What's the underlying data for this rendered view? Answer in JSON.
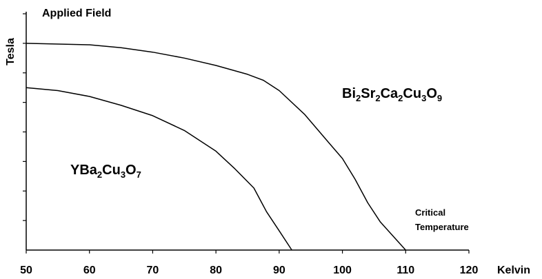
{
  "chart_data": {
    "type": "line",
    "title": "Applied Field",
    "xlabel": "Kelvin",
    "ylabel": "Tesla",
    "xlim": [
      50,
      120
    ],
    "ylim": [
      0,
      8
    ],
    "y_tick_count": 8,
    "x_ticks": [
      50,
      60,
      70,
      80,
      90,
      100,
      110,
      120
    ],
    "grid": false,
    "annotation": [
      "Critical",
      "Temperature"
    ],
    "series": [
      {
        "name": "Bi",
        "label_parts": [
          {
            "t": "Bi"
          },
          {
            "t": "2",
            "sub": true
          },
          {
            "t": "Sr"
          },
          {
            "t": "2",
            "sub": true
          },
          {
            "t": "Ca"
          },
          {
            "t": "2",
            "sub": true
          },
          {
            "t": "Cu"
          },
          {
            "t": "3",
            "sub": true
          },
          {
            "t": "O"
          },
          {
            "t": "9",
            "sub": true
          }
        ],
        "x": [
          50,
          60,
          65,
          70,
          75,
          80,
          85,
          87.5,
          90,
          94,
          98,
          100,
          102,
          104,
          106,
          110
        ],
        "y": [
          7.0,
          6.95,
          6.85,
          6.7,
          6.5,
          6.25,
          5.95,
          5.75,
          5.4,
          4.6,
          3.6,
          3.1,
          2.4,
          1.6,
          0.95,
          0
        ]
      },
      {
        "name": "Y",
        "label_parts": [
          {
            "t": "YBa"
          },
          {
            "t": "2",
            "sub": true
          },
          {
            "t": "Cu"
          },
          {
            "t": "3",
            "sub": true
          },
          {
            "t": "O"
          },
          {
            "t": "7",
            "sub": true
          }
        ],
        "x": [
          50,
          55,
          60,
          65,
          70,
          75,
          80,
          83,
          86,
          88,
          90,
          92
        ],
        "y": [
          5.5,
          5.4,
          5.2,
          4.9,
          4.55,
          4.05,
          3.35,
          2.75,
          2.1,
          1.3,
          0.65,
          0
        ]
      }
    ]
  }
}
